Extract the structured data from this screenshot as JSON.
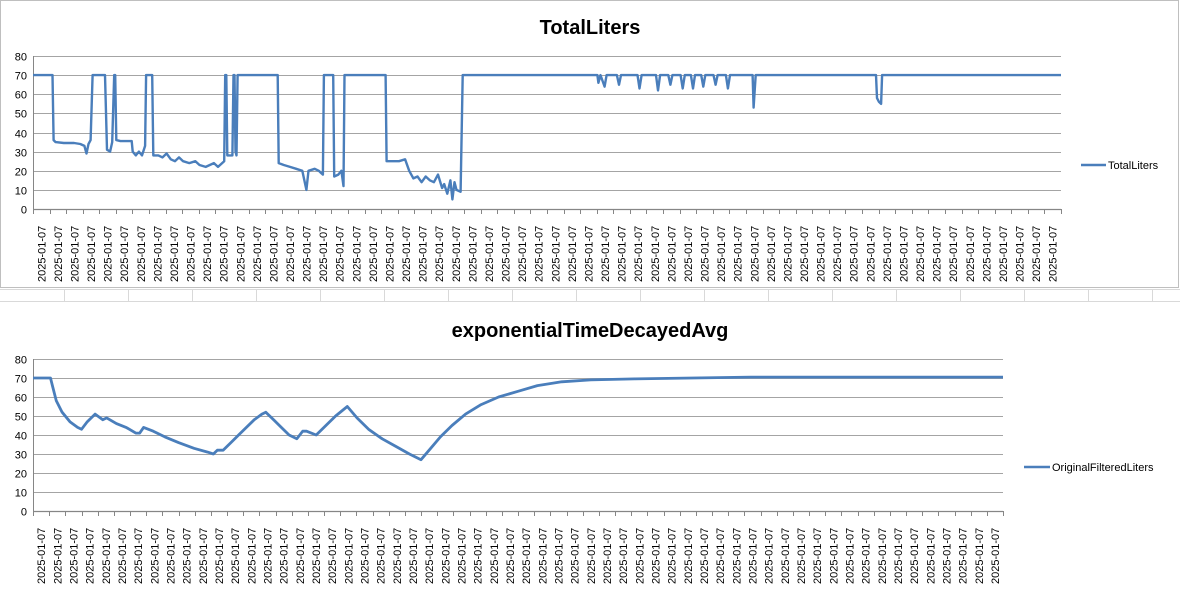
{
  "colors": {
    "series": "#4a7ebb",
    "gridline": "#868686",
    "axis": "#868686",
    "sheet_grid": "#d9d9d9"
  },
  "chart_data": [
    {
      "type": "line",
      "title": "TotalLiters",
      "xlabel": "",
      "ylabel": "",
      "ylim": [
        0,
        80
      ],
      "yticks": [
        0,
        10,
        20,
        30,
        40,
        50,
        60,
        70,
        80
      ],
      "x_tick_label": "2025-01-07",
      "x_tick_count": 62,
      "grid": true,
      "legend": "right",
      "series": [
        {
          "name": "TotalLiters",
          "points": [
            [
              0.0,
              70
            ],
            [
              0.019,
              70
            ],
            [
              0.02,
              36
            ],
            [
              0.022,
              35
            ],
            [
              0.03,
              34.5
            ],
            [
              0.04,
              34.5
            ],
            [
              0.046,
              34
            ],
            [
              0.05,
              33
            ],
            [
              0.052,
              29
            ],
            [
              0.054,
              34
            ],
            [
              0.056,
              36
            ],
            [
              0.058,
              70
            ],
            [
              0.07,
              70
            ],
            [
              0.072,
              31
            ],
            [
              0.075,
              30
            ],
            [
              0.077,
              35
            ],
            [
              0.079,
              70
            ],
            [
              0.08,
              70
            ],
            [
              0.081,
              36
            ],
            [
              0.085,
              35.5
            ],
            [
              0.096,
              35.5
            ],
            [
              0.097,
              30
            ],
            [
              0.1,
              28
            ],
            [
              0.103,
              30
            ],
            [
              0.106,
              28
            ],
            [
              0.109,
              33
            ],
            [
              0.11,
              70
            ],
            [
              0.116,
              70
            ],
            [
              0.117,
              28
            ],
            [
              0.122,
              28
            ],
            [
              0.126,
              27
            ],
            [
              0.13,
              29
            ],
            [
              0.134,
              26
            ],
            [
              0.138,
              25
            ],
            [
              0.142,
              27
            ],
            [
              0.146,
              25
            ],
            [
              0.152,
              24
            ],
            [
              0.158,
              25
            ],
            [
              0.162,
              23
            ],
            [
              0.168,
              22
            ],
            [
              0.172,
              23
            ],
            [
              0.176,
              24
            ],
            [
              0.18,
              22
            ],
            [
              0.186,
              25
            ],
            [
              0.187,
              70
            ],
            [
              0.188,
              70
            ],
            [
              0.189,
              28
            ],
            [
              0.194,
              28
            ],
            [
              0.195,
              70
            ],
            [
              0.196,
              70
            ],
            [
              0.197,
              30
            ],
            [
              0.198,
              28
            ],
            [
              0.199,
              70
            ],
            [
              0.238,
              70
            ],
            [
              0.239,
              24
            ],
            [
              0.244,
              23
            ],
            [
              0.25,
              22
            ],
            [
              0.256,
              21
            ],
            [
              0.262,
              20
            ],
            [
              0.266,
              10
            ],
            [
              0.268,
              20
            ],
            [
              0.274,
              21
            ],
            [
              0.278,
              20
            ],
            [
              0.28,
              19
            ],
            [
              0.282,
              18
            ],
            [
              0.283,
              70
            ],
            [
              0.292,
              70
            ],
            [
              0.293,
              17
            ],
            [
              0.297,
              18
            ],
            [
              0.3,
              20
            ],
            [
              0.302,
              12
            ],
            [
              0.303,
              70
            ],
            [
              0.343,
              70
            ],
            [
              0.344,
              25
            ],
            [
              0.35,
              25
            ],
            [
              0.356,
              25
            ],
            [
              0.362,
              26
            ],
            [
              0.366,
              20
            ],
            [
              0.37,
              16
            ],
            [
              0.374,
              17
            ],
            [
              0.378,
              14
            ],
            [
              0.382,
              17
            ],
            [
              0.386,
              15
            ],
            [
              0.39,
              14
            ],
            [
              0.394,
              18
            ],
            [
              0.398,
              11
            ],
            [
              0.4,
              13
            ],
            [
              0.403,
              8
            ],
            [
              0.406,
              15
            ],
            [
              0.408,
              5
            ],
            [
              0.41,
              14
            ],
            [
              0.412,
              10
            ],
            [
              0.416,
              9
            ],
            [
              0.418,
              70
            ],
            [
              0.549,
              70
            ],
            [
              0.55,
              66
            ],
            [
              0.552,
              70
            ],
            [
              0.556,
              64
            ],
            [
              0.558,
              70
            ],
            [
              0.568,
              70
            ],
            [
              0.57,
              65
            ],
            [
              0.572,
              70
            ],
            [
              0.588,
              70
            ],
            [
              0.59,
              63
            ],
            [
              0.592,
              70
            ],
            [
              0.606,
              70
            ],
            [
              0.608,
              62
            ],
            [
              0.61,
              70
            ],
            [
              0.618,
              70
            ],
            [
              0.62,
              65
            ],
            [
              0.622,
              70
            ],
            [
              0.63,
              70
            ],
            [
              0.632,
              63
            ],
            [
              0.634,
              70
            ],
            [
              0.64,
              70
            ],
            [
              0.642,
              63
            ],
            [
              0.644,
              70
            ],
            [
              0.65,
              70
            ],
            [
              0.652,
              64
            ],
            [
              0.654,
              70
            ],
            [
              0.662,
              70
            ],
            [
              0.664,
              65
            ],
            [
              0.666,
              70
            ],
            [
              0.674,
              70
            ],
            [
              0.676,
              63
            ],
            [
              0.678,
              70
            ],
            [
              0.7,
              70
            ],
            [
              0.701,
              53
            ],
            [
              0.702,
              62
            ],
            [
              0.703,
              70
            ],
            [
              0.82,
              70
            ],
            [
              0.821,
              58
            ],
            [
              0.823,
              56
            ],
            [
              0.825,
              55
            ],
            [
              0.826,
              70
            ],
            [
              1.0,
              70
            ]
          ]
        }
      ]
    },
    {
      "type": "line",
      "title": "exponentialTimeDecayedAvg",
      "xlabel": "",
      "ylabel": "",
      "ylim": [
        0,
        80
      ],
      "yticks": [
        0,
        10,
        20,
        30,
        40,
        50,
        60,
        70,
        80
      ],
      "x_tick_label": "2025-01-07",
      "x_tick_count": 60,
      "grid": true,
      "legend": "right",
      "series": [
        {
          "name": "OriginalFilteredLiters",
          "points": [
            [
              0.0,
              70
            ],
            [
              0.018,
              70
            ],
            [
              0.02,
              66
            ],
            [
              0.024,
              58
            ],
            [
              0.03,
              52
            ],
            [
              0.038,
              47
            ],
            [
              0.046,
              44
            ],
            [
              0.05,
              43
            ],
            [
              0.056,
              47
            ],
            [
              0.064,
              51
            ],
            [
              0.072,
              48
            ],
            [
              0.076,
              49
            ],
            [
              0.086,
              46
            ],
            [
              0.096,
              44
            ],
            [
              0.106,
              41
            ],
            [
              0.11,
              41
            ],
            [
              0.114,
              44
            ],
            [
              0.124,
              42
            ],
            [
              0.136,
              39
            ],
            [
              0.15,
              36
            ],
            [
              0.166,
              33
            ],
            [
              0.18,
              31
            ],
            [
              0.186,
              30
            ],
            [
              0.19,
              32
            ],
            [
              0.196,
              32
            ],
            [
              0.204,
              36
            ],
            [
              0.212,
              40
            ],
            [
              0.22,
              44
            ],
            [
              0.228,
              48
            ],
            [
              0.236,
              51
            ],
            [
              0.24,
              52
            ],
            [
              0.248,
              48
            ],
            [
              0.256,
              44
            ],
            [
              0.264,
              40
            ],
            [
              0.272,
              38
            ],
            [
              0.278,
              42
            ],
            [
              0.282,
              42
            ],
            [
              0.292,
              40
            ],
            [
              0.302,
              45
            ],
            [
              0.312,
              50
            ],
            [
              0.324,
              55
            ],
            [
              0.334,
              49
            ],
            [
              0.346,
              43
            ],
            [
              0.36,
              38
            ],
            [
              0.374,
              34
            ],
            [
              0.388,
              30
            ],
            [
              0.4,
              27
            ],
            [
              0.41,
              33
            ],
            [
              0.42,
              39
            ],
            [
              0.432,
              45
            ],
            [
              0.446,
              51
            ],
            [
              0.462,
              56
            ],
            [
              0.48,
              60
            ],
            [
              0.5,
              63
            ],
            [
              0.52,
              66
            ],
            [
              0.545,
              68
            ],
            [
              0.575,
              69
            ],
            [
              0.62,
              69.5
            ],
            [
              0.68,
              70
            ],
            [
              0.74,
              70.5
            ],
            [
              1.0,
              70.5
            ]
          ]
        }
      ]
    }
  ]
}
